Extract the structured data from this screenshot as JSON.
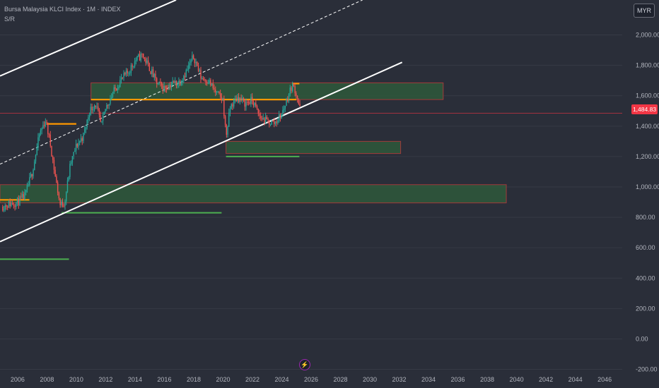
{
  "header": {
    "symbol_title": "Bursa Malaysia KLCI Index · 1M · INDEX",
    "indicator_label": "S/R",
    "currency_button": "MYR"
  },
  "price_tag": "1,484.83",
  "icons": {
    "events": "lightning-icon"
  },
  "colors": {
    "background": "#2a2e39",
    "up_candle": "#26a69a",
    "down_candle": "#ef5350",
    "zone_fill": "#2e5b3b",
    "zone_border": "#a33a3a",
    "support_line": "#4caf50",
    "resistance_line": "#ff9800",
    "trend_line": "#ffffff",
    "current_price": "#f23645"
  },
  "chart_data": {
    "type": "candlestick",
    "title": "Bursa Malaysia KLCI Index · 1M · INDEX",
    "y_axis": {
      "ticks": [
        "2,000.00",
        "1,800.00",
        "1,600.00",
        "1,400.00",
        "1,200.00",
        "1,000.00",
        "800.00",
        "600.00",
        "400.00",
        "200.00",
        "0.00",
        "-200.00"
      ],
      "range": [
        -230,
        2230
      ],
      "position": "right",
      "grid": true
    },
    "x_axis": {
      "ticks": [
        "2006",
        "2008",
        "2010",
        "2012",
        "2014",
        "2016",
        "2018",
        "2020",
        "2022",
        "2024",
        "2026",
        "2028",
        "2030",
        "2032",
        "2034",
        "2036",
        "2038",
        "2040",
        "2042",
        "2044",
        "2046"
      ],
      "range": [
        2004.8,
        2047.2
      ],
      "grid": false
    },
    "last_price": 1484.83,
    "price_path": [
      [
        2004.9,
        870
      ],
      [
        2005.5,
        890
      ],
      [
        2006.0,
        900
      ],
      [
        2006.5,
        940
      ],
      [
        2007.0,
        1100
      ],
      [
        2007.5,
        1350
      ],
      [
        2007.9,
        1440
      ],
      [
        2008.2,
        1300
      ],
      [
        2008.6,
        1050
      ],
      [
        2008.9,
        880
      ],
      [
        2009.2,
        900
      ],
      [
        2009.6,
        1150
      ],
      [
        2010.0,
        1270
      ],
      [
        2010.5,
        1340
      ],
      [
        2010.9,
        1500
      ],
      [
        2011.3,
        1550
      ],
      [
        2011.7,
        1400
      ],
      [
        2012.0,
        1520
      ],
      [
        2012.5,
        1620
      ],
      [
        2013.0,
        1700
      ],
      [
        2013.5,
        1750
      ],
      [
        2014.0,
        1830
      ],
      [
        2014.5,
        1870
      ],
      [
        2015.0,
        1780
      ],
      [
        2015.5,
        1680
      ],
      [
        2016.0,
        1650
      ],
      [
        2016.5,
        1680
      ],
      [
        2017.0,
        1690
      ],
      [
        2017.5,
        1760
      ],
      [
        2018.0,
        1860
      ],
      [
        2018.5,
        1720
      ],
      [
        2019.0,
        1700
      ],
      [
        2019.5,
        1620
      ],
      [
        2020.0,
        1570
      ],
      [
        2020.2,
        1330
      ],
      [
        2020.5,
        1530
      ],
      [
        2021.0,
        1590
      ],
      [
        2021.5,
        1550
      ],
      [
        2022.0,
        1570
      ],
      [
        2022.5,
        1460
      ],
      [
        2023.0,
        1430
      ],
      [
        2023.5,
        1420
      ],
      [
        2024.0,
        1480
      ],
      [
        2024.4,
        1590
      ],
      [
        2024.7,
        1670
      ],
      [
        2024.9,
        1640
      ],
      [
        2025.1,
        1570
      ],
      [
        2025.3,
        1485
      ]
    ],
    "zones": [
      {
        "x": [
          2011.0,
          2035.0
        ],
        "y": [
          1575,
          1685
        ]
      },
      {
        "x": [
          2020.2,
          2032.1
        ],
        "y": [
          1220,
          1300
        ]
      },
      {
        "x": [
          2004.8,
          2039.3
        ],
        "y": [
          895,
          1015
        ]
      }
    ],
    "support_lines": [
      {
        "x": [
          2020.2,
          2025.2
        ],
        "y": 1200
      },
      {
        "x": [
          2009.0,
          2019.9
        ],
        "y": 830
      },
      {
        "x": [
          2004.8,
          2009.5
        ],
        "y": 525
      }
    ],
    "resistance_lines": [
      {
        "x": [
          2011.0,
          2025.0
        ],
        "y": 1575
      },
      {
        "x": [
          2008.0,
          2010.0
        ],
        "y": 1415
      },
      {
        "x": [
          2004.8,
          2006.8
        ],
        "y": 915
      },
      {
        "x": [
          2024.7,
          2025.2
        ],
        "y": 1680
      }
    ],
    "trend_lines": [
      {
        "style": "solid",
        "from": [
          2004.8,
          640
        ],
        "to": [
          2032.2,
          1820
        ]
      },
      {
        "style": "solid",
        "from": [
          2004.8,
          1730
        ],
        "to": [
          2016.8,
          2230
        ]
      },
      {
        "style": "dashed",
        "from": [
          2004.8,
          1150
        ],
        "to": [
          2029.5,
          2230
        ]
      }
    ],
    "current_price_line": 1484.83
  }
}
